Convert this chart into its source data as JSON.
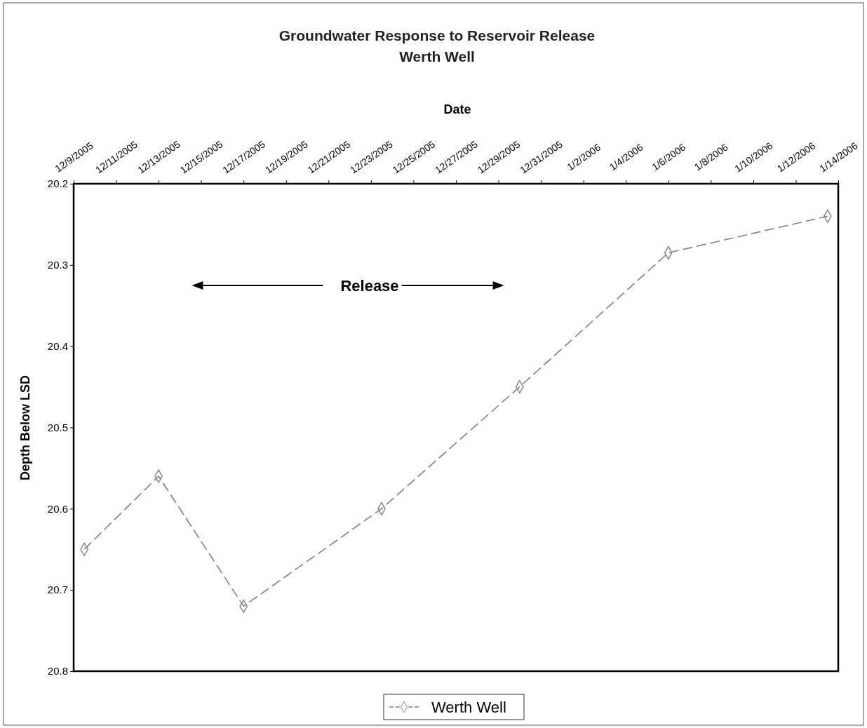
{
  "chart_data": {
    "type": "line",
    "title": "Groundwater Response to Reservoir Release",
    "subtitle": "Werth Well",
    "xlabel": "Date",
    "ylabel": "Depth Below LSD",
    "x": [
      "2005-12-09T12:00",
      "2005-12-13",
      "2005-12-17",
      "2005-12-23T12:00",
      "2005-12-30",
      "2006-01-06",
      "2006-01-13T12:00"
    ],
    "series": [
      {
        "name": "Werth Well",
        "color": "#808080",
        "values": [
          20.65,
          20.56,
          20.72,
          20.6,
          20.45,
          20.285,
          20.24
        ]
      }
    ],
    "xlim": [
      "2005-12-09",
      "2006-01-14"
    ],
    "xticks": [
      {
        "value": "2005-12-09",
        "label": "12/9/2005"
      },
      {
        "value": "2005-12-11",
        "label": "12/11/2005"
      },
      {
        "value": "2005-12-13",
        "label": "12/13/2005"
      },
      {
        "value": "2005-12-15",
        "label": "12/15/2005"
      },
      {
        "value": "2005-12-17",
        "label": "12/17/2005"
      },
      {
        "value": "2005-12-19",
        "label": "12/19/2005"
      },
      {
        "value": "2005-12-21",
        "label": "12/21/2005"
      },
      {
        "value": "2005-12-23",
        "label": "12/23/2005"
      },
      {
        "value": "2005-12-25",
        "label": "12/25/2005"
      },
      {
        "value": "2005-12-27",
        "label": "12/27/2005"
      },
      {
        "value": "2005-12-29",
        "label": "12/29/2005"
      },
      {
        "value": "2005-12-31",
        "label": "12/31/2005"
      },
      {
        "value": "2006-01-02",
        "label": "1/2/2006"
      },
      {
        "value": "2006-01-04",
        "label": "1/4/2006"
      },
      {
        "value": "2006-01-06",
        "label": "1/6/2006"
      },
      {
        "value": "2006-01-08",
        "label": "1/8/2006"
      },
      {
        "value": "2006-01-10",
        "label": "1/10/2006"
      },
      {
        "value": "2006-01-12",
        "label": "1/12/2006"
      },
      {
        "value": "2006-01-14",
        "label": "1/14/2006"
      }
    ],
    "ylim": [
      20.8,
      20.2
    ],
    "yticks": [
      20.2,
      20.3,
      20.4,
      20.5,
      20.6,
      20.7,
      20.8
    ],
    "annotations": [
      "Release"
    ],
    "grid": false,
    "legend": "bottom",
    "marker": "diamond",
    "line_style": "dashed"
  }
}
